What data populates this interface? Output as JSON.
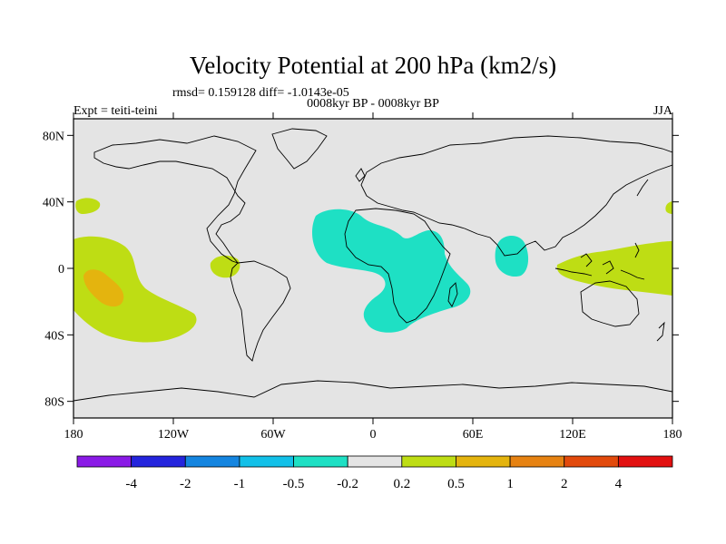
{
  "header": {
    "title": "Velocity Potential at 200 hPa (km2/s)",
    "stats": "rmsd= 0.159128 diff= -1.0143e-05",
    "expt": "Expt = teiti-teini",
    "period": "0008kyr BP - 0008kyr BP",
    "season": "JJA"
  },
  "axes": {
    "y_ticks": [
      "80N",
      "40N",
      "0",
      "40S",
      "80S"
    ],
    "x_ticks": [
      "180",
      "120W",
      "60W",
      "0",
      "60E",
      "120E",
      "180"
    ]
  },
  "colorbar": {
    "colors": [
      "#8a1ae6",
      "#2424dd",
      "#1485e0",
      "#12c0e8",
      "#1ee0c4",
      "#e4e4e4",
      "#bedd14",
      "#e4b40e",
      "#e68212",
      "#e24a0c",
      "#e21010"
    ],
    "labels": [
      "-4",
      "-2",
      "-1",
      "-0.5",
      "-0.2",
      "0.2",
      "0.5",
      "1",
      "2",
      "4"
    ]
  },
  "map": {
    "background": "#e4e4e4",
    "regions": [
      {
        "name": "anomaly-north-pacific",
        "level": "0.2 to 0.5",
        "color": "#bedd14"
      },
      {
        "name": "anomaly-east-pacific",
        "level": "0.2 to 0.5",
        "color": "#bedd14"
      },
      {
        "name": "anomaly-central-pacific-core",
        "level": "0.5 to 1",
        "color": "#e4b40e"
      },
      {
        "name": "anomaly-south-america-west",
        "level": "0.2 to 0.5",
        "color": "#bedd14"
      },
      {
        "name": "anomaly-africa-atlantic",
        "level": "-0.5 to -0.2",
        "color": "#1ee0c4"
      },
      {
        "name": "anomaly-indian-ocean",
        "level": "-0.5 to -0.2",
        "color": "#1ee0c4"
      },
      {
        "name": "anomaly-maritime-continent",
        "level": "0.2 to 0.5",
        "color": "#bedd14"
      },
      {
        "name": "anomaly-west-pacific-north",
        "level": "0.2 to 0.5",
        "color": "#bedd14"
      }
    ]
  }
}
